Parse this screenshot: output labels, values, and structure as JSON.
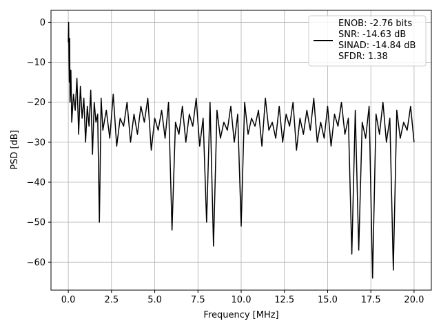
{
  "chart_data": {
    "type": "line",
    "title": "",
    "xlabel": "Frequency [MHz]",
    "ylabel": "PSD [dB]",
    "xlim": [
      -1.0,
      21.0
    ],
    "ylim": [
      -67,
      3
    ],
    "xticks": [
      0.0,
      2.5,
      5.0,
      7.5,
      10.0,
      12.5,
      15.0,
      17.5,
      20.0
    ],
    "xtick_labels": [
      "0.0",
      "2.5",
      "5.0",
      "7.5",
      "10.0",
      "12.5",
      "15.0",
      "17.5",
      "20.0"
    ],
    "yticks": [
      0,
      -10,
      -20,
      -30,
      -40,
      -50,
      -60
    ],
    "ytick_labels": [
      "0",
      "−10",
      "−20",
      "−30",
      "−40",
      "−50",
      "−60"
    ],
    "grid": true,
    "legend_placement": "top-right",
    "line_color": "#000000",
    "series": [
      {
        "name": "ENOB: -2.76 bits\nSNR: -14.63 dB\nSINAD: -14.84 dB\nSFDR: 1.38",
        "x": [
          0.0,
          0.02,
          0.04,
          0.06,
          0.08,
          0.1,
          0.15,
          0.2,
          0.3,
          0.4,
          0.5,
          0.6,
          0.7,
          0.8,
          0.9,
          1.0,
          1.1,
          1.2,
          1.3,
          1.4,
          1.5,
          1.6,
          1.7,
          1.8,
          1.9,
          2.0,
          2.2,
          2.4,
          2.6,
          2.8,
          3.0,
          3.2,
          3.4,
          3.6,
          3.8,
          4.0,
          4.2,
          4.4,
          4.6,
          4.8,
          5.0,
          5.2,
          5.4,
          5.6,
          5.8,
          6.0,
          6.2,
          6.4,
          6.6,
          6.8,
          7.0,
          7.2,
          7.4,
          7.6,
          7.8,
          8.0,
          8.2,
          8.4,
          8.6,
          8.8,
          9.0,
          9.2,
          9.4,
          9.6,
          9.8,
          10.0,
          10.2,
          10.4,
          10.6,
          10.8,
          11.0,
          11.2,
          11.4,
          11.6,
          11.8,
          12.0,
          12.2,
          12.4,
          12.6,
          12.8,
          13.0,
          13.2,
          13.4,
          13.6,
          13.8,
          14.0,
          14.2,
          14.4,
          14.6,
          14.8,
          15.0,
          15.2,
          15.4,
          15.6,
          15.8,
          16.0,
          16.2,
          16.4,
          16.6,
          16.8,
          17.0,
          17.2,
          17.4,
          17.6,
          17.8,
          18.0,
          18.2,
          18.4,
          18.6,
          18.8,
          19.0,
          19.2,
          19.4,
          19.6,
          19.8,
          20.0
        ],
        "y": [
          -5,
          0,
          -8,
          -15,
          -4,
          -20,
          -12,
          -25,
          -18,
          -22,
          -14,
          -28,
          -16,
          -24,
          -19,
          -30,
          -21,
          -26,
          -17,
          -33,
          -20,
          -25,
          -23,
          -50,
          -19,
          -27,
          -22,
          -29,
          -18,
          -31,
          -24,
          -26,
          -20,
          -30,
          -23,
          -28,
          -21,
          -25,
          -19,
          -32,
          -24,
          -27,
          -22,
          -29,
          -20,
          -52,
          -25,
          -28,
          -21,
          -30,
          -23,
          -26,
          -19,
          -31,
          -24,
          -50,
          -20,
          -56,
          -22,
          -29,
          -25,
          -27,
          -21,
          -30,
          -23,
          -51,
          -20,
          -28,
          -24,
          -26,
          -22,
          -31,
          -19,
          -27,
          -25,
          -29,
          -21,
          -30,
          -23,
          -26,
          -20,
          -32,
          -24,
          -28,
          -22,
          -27,
          -19,
          -30,
          -25,
          -29,
          -21,
          -31,
          -23,
          -26,
          -20,
          -28,
          -24,
          -58,
          -22,
          -57,
          -25,
          -29,
          -21,
          -64,
          -23,
          -28,
          -20,
          -30,
          -24,
          -62,
          -22,
          -29,
          -25,
          -27,
          -21,
          -30
        ]
      }
    ]
  }
}
